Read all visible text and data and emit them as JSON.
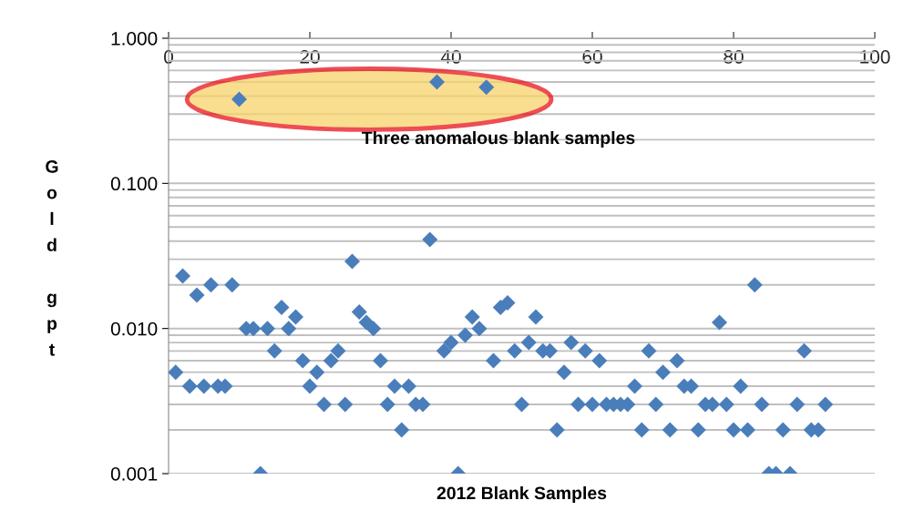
{
  "chart_data": {
    "type": "scatter",
    "xlabel": "2012 Blank Samples",
    "ylabel": "Gold gpt",
    "annotations": [
      "Three anomalous blank samples"
    ],
    "x": [
      1,
      2,
      3,
      4,
      5,
      6,
      7,
      8,
      9,
      10,
      11,
      12,
      13,
      14,
      15,
      16,
      17,
      18,
      19,
      20,
      21,
      22,
      23,
      24,
      25,
      26,
      27,
      28,
      29,
      30,
      31,
      32,
      33,
      34,
      35,
      36,
      37,
      38,
      39,
      40,
      41,
      42,
      43,
      44,
      45,
      46,
      47,
      48,
      49,
      50,
      51,
      52,
      53,
      54,
      55,
      56,
      57,
      58,
      59,
      60,
      61,
      62,
      63,
      64,
      65,
      66,
      67,
      68,
      69,
      70,
      71,
      72,
      73,
      74,
      75,
      76,
      77,
      78,
      79,
      80,
      81,
      82,
      83,
      84,
      85,
      86,
      87,
      88,
      89,
      90,
      91,
      92,
      93
    ],
    "series": [
      {
        "color": "#4a7ebb",
        "values": [
          0.005,
          0.023,
          0.004,
          0.017,
          0.004,
          0.02,
          0.004,
          0.004,
          0.02,
          0.38,
          0.01,
          0.01,
          0.001,
          0.01,
          0.007,
          0.014,
          0.01,
          0.012,
          0.006,
          0.004,
          0.005,
          0.003,
          0.006,
          0.007,
          0.003,
          0.029,
          0.013,
          0.011,
          0.01,
          0.006,
          0.003,
          0.004,
          0.002,
          0.004,
          0.003,
          0.003,
          0.041,
          0.5,
          0.007,
          0.008,
          0.001,
          0.009,
          0.012,
          0.01,
          0.46,
          0.006,
          0.014,
          0.015,
          0.007,
          0.003,
          0.008,
          0.012,
          0.007,
          0.007,
          0.002,
          0.005,
          0.008,
          0.003,
          0.007,
          0.003,
          0.006,
          0.003,
          0.003,
          0.003,
          0.003,
          0.004,
          0.002,
          0.007,
          0.003,
          0.005,
          0.002,
          0.006,
          0.004,
          0.004,
          0.002,
          0.003,
          0.003,
          0.011,
          0.003,
          0.002,
          0.004,
          0.002,
          0.02,
          0.003,
          0.001,
          0.001,
          0.002,
          0.001,
          0.003,
          0.007,
          0.002,
          0.002,
          0.003
        ]
      }
    ],
    "log": "y",
    "xlim": [
      0,
      100
    ],
    "xticks": [
      0,
      20,
      40,
      60,
      80,
      100
    ],
    "ylim": [
      0.001,
      1
    ],
    "yticks": [
      {
        "value": 0.001,
        "label": "0.001"
      },
      {
        "value": 0.01,
        "label": "0.010"
      },
      {
        "value": 0.1,
        "label": "0.100"
      },
      {
        "value": 1,
        "label": "1.000"
      }
    ],
    "grid": "y",
    "marker": "diamond"
  }
}
